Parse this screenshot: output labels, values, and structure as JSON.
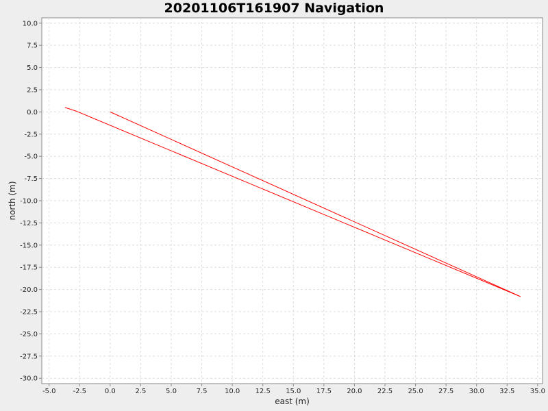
{
  "chart_data": {
    "type": "line",
    "title": "20201106T161907 Navigation",
    "xlabel": "east (m)",
    "ylabel": "north (m)",
    "xlim": [
      -5.6,
      35.4
    ],
    "ylim": [
      -30.6,
      10.6
    ],
    "x_ticks": [
      -5.0,
      -2.5,
      0.0,
      2.5,
      5.0,
      7.5,
      10.0,
      12.5,
      15.0,
      17.5,
      20.0,
      22.5,
      25.0,
      27.5,
      30.0,
      32.5,
      35.0
    ],
    "x_tick_labels": [
      "-5.0",
      "-2.5",
      "0.0",
      "2.5",
      "5.0",
      "7.5",
      "10.0",
      "12.5",
      "15.0",
      "17.5",
      "20.0",
      "22.5",
      "25.0",
      "27.5",
      "30.0",
      "32.5",
      "35.0"
    ],
    "y_ticks": [
      10.0,
      7.5,
      5.0,
      2.5,
      0.0,
      -2.5,
      -5.0,
      -7.5,
      -10.0,
      -12.5,
      -15.0,
      -17.5,
      -20.0,
      -22.5,
      -25.0,
      -27.5,
      -30.0
    ],
    "y_tick_labels": [
      "10.0",
      "7.5",
      "5.0",
      "2.5",
      "0.0",
      "-2.5",
      "-5.0",
      "-7.5",
      "-10.0",
      "-12.5",
      "-15.0",
      "-17.5",
      "-20.0",
      "-22.5",
      "-25.0",
      "-27.5",
      "-30.0"
    ],
    "grid": true,
    "series": [
      {
        "color": "#ff0000",
        "x": [
          0.0,
          33.6,
          -2.8,
          -3.7
        ],
        "y": [
          0.0,
          -20.8,
          0.1,
          0.5
        ]
      }
    ]
  }
}
